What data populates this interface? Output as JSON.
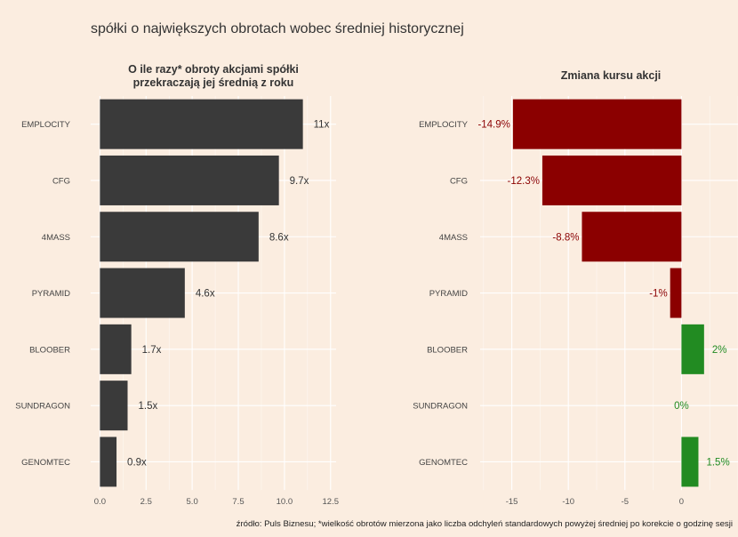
{
  "title": "spółki o największych obrotach wobec średniej historycznej",
  "caption": "źródło: Puls Biznesu; *wielkość obrotów mierzona jako liczba odchyleń standardowych powyżej średniej po korekcie o godzinę sesji",
  "colors": {
    "background": "#fbede0",
    "bar_turnover": "#3a3a3a",
    "bar_negative": "#8b0000",
    "bar_positive": "#228b22",
    "grid": "#ffffff"
  },
  "chart_data": [
    {
      "type": "bar",
      "orientation": "horizontal",
      "title": "O ile razy* obroty akcjami spółki\nprzekraczają jej średnią z roku",
      "categories": [
        "EMPLOCITY",
        "CFG",
        "4MASS",
        "PYRAMID",
        "BLOOBER",
        "SUNDRAGON",
        "GENOMTEC"
      ],
      "values": [
        11.0,
        9.7,
        8.6,
        4.6,
        1.7,
        1.5,
        0.9
      ],
      "labels": [
        "11x",
        "9.7x",
        "8.6x",
        "4.6x",
        "1.7x",
        "1.5x",
        "0.9x"
      ],
      "xlim": [
        -0.5,
        12.8
      ],
      "xticks": [
        0,
        2.5,
        5,
        7.5,
        10,
        12.5
      ],
      "xtick_labels": [
        "0.0",
        "2.5",
        "5.0",
        "7.5",
        "10.0",
        "12.5"
      ],
      "grid": true
    },
    {
      "type": "bar",
      "orientation": "horizontal",
      "title": "Zmiana kursu akcji",
      "categories": [
        "EMPLOCITY",
        "CFG",
        "4MASS",
        "PYRAMID",
        "BLOOBER",
        "SUNDRAGON",
        "GENOMTEC"
      ],
      "values": [
        -14.9,
        -12.3,
        -8.8,
        -1.0,
        2.0,
        0.0,
        1.5
      ],
      "labels": [
        "-14.9%",
        "-12.3%",
        "-8.8%",
        "-1%",
        "2%",
        "0%",
        "1.5%"
      ],
      "xlim": [
        -17.8,
        5.0
      ],
      "xticks": [
        -15,
        -10,
        -5,
        0
      ],
      "xtick_labels": [
        "-15",
        "-10",
        "-5",
        "0"
      ],
      "grid": true
    }
  ]
}
